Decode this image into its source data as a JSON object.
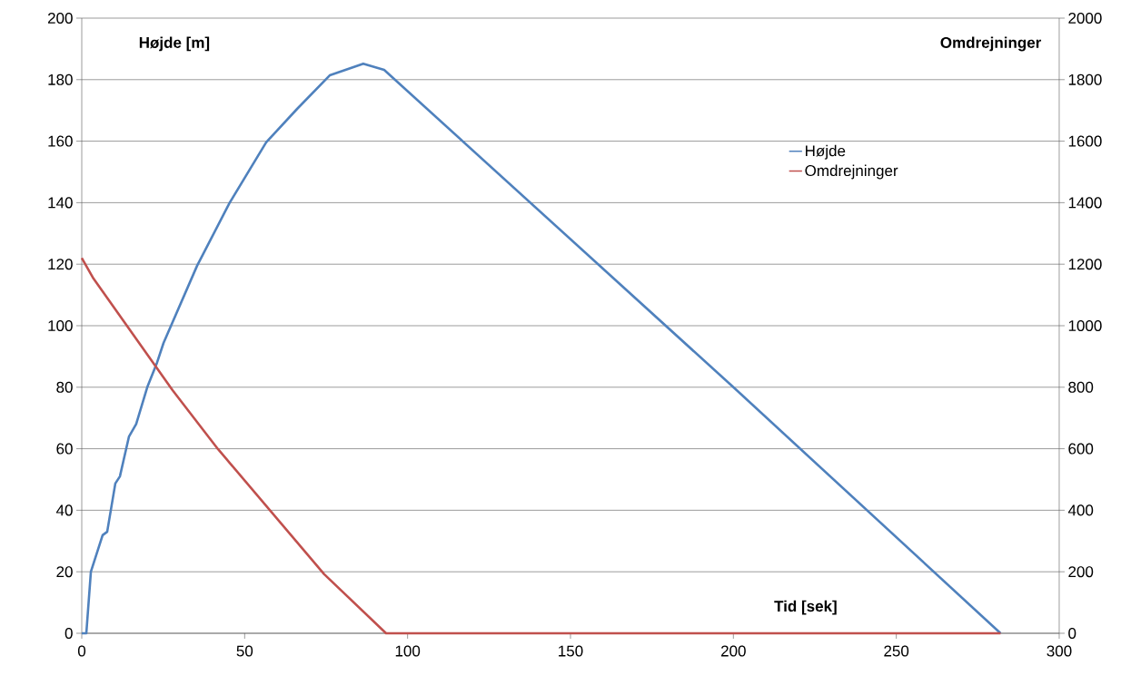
{
  "chart_data": {
    "type": "line",
    "xlabel": "Tid     [sek]",
    "ylabel": "Højde    [m]",
    "y2label": "Omdrejninger",
    "series": [
      {
        "name": "Højde",
        "color": "#4f81bd",
        "x": [
          0,
          1.4,
          2.8,
          6.4,
          7.8,
          10.3,
          11.7,
          14.5,
          16.7,
          20.1,
          23.1,
          25.1,
          35.4,
          45.4,
          56.6,
          66.1,
          76.1,
          86.4,
          92.8,
          200,
          282
        ],
        "values": [
          0,
          0,
          20,
          31.9,
          33,
          48.7,
          51,
          64,
          68,
          80,
          88,
          94.4,
          119.5,
          140,
          159.6,
          170.5,
          181.4,
          185.2,
          183.2,
          80,
          0
        ]
      },
      {
        "name": "Omdrejninger",
        "color": "#c0504d",
        "axis": "y2",
        "x": [
          0,
          3.6,
          27.9,
          41.8,
          74.4,
          93.4,
          282
        ],
        "values": [
          1220,
          1153,
          790,
          599,
          192,
          0,
          0
        ]
      }
    ],
    "xlim": [
      0,
      300
    ],
    "xticks": [
      0,
      50,
      100,
      150,
      200,
      250,
      300
    ],
    "ylim": [
      0,
      200
    ],
    "yticks": [
      0,
      20,
      40,
      60,
      80,
      100,
      120,
      140,
      160,
      180,
      200
    ],
    "y2lim": [
      0,
      2000
    ],
    "y2ticks": [
      0,
      200,
      400,
      600,
      800,
      1000,
      1200,
      1400,
      1600,
      1800,
      2000
    ],
    "grid": "y",
    "legend": "right",
    "marker": "none",
    "line_style": "solid"
  }
}
